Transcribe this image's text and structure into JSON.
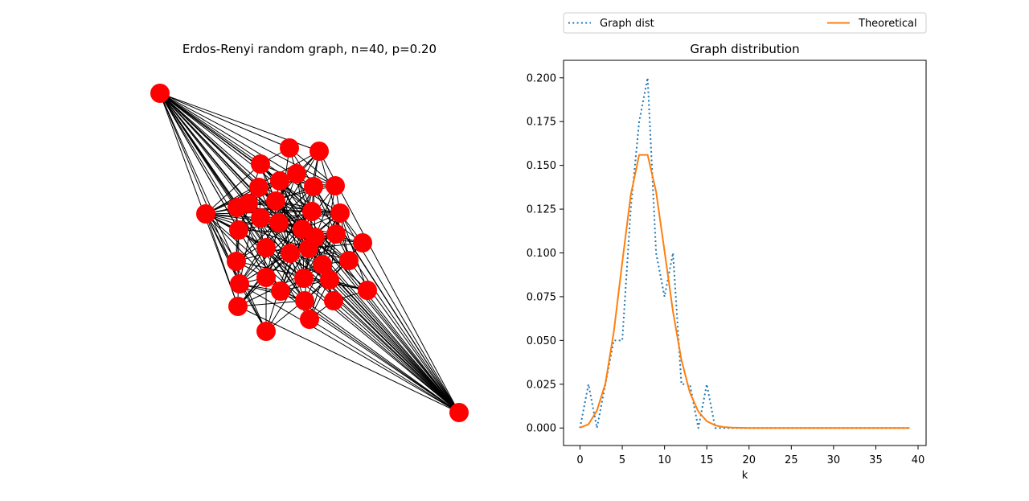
{
  "chart_data": [
    {
      "type": "network",
      "title": "Erdos-Renyi random graph, n=40, p=0.20",
      "node_color": "#ff0000",
      "edge_color": "#000000",
      "node_count": 40
    },
    {
      "type": "line",
      "title": "Graph distribution",
      "xlabel": "k",
      "ylabel": "",
      "xlim": [
        -1.95,
        40.95
      ],
      "ylim": [
        -0.01,
        0.21
      ],
      "xticks": [
        0,
        5,
        10,
        15,
        20,
        25,
        30,
        35,
        40
      ],
      "yticks": [
        0.0,
        0.025,
        0.05,
        0.075,
        0.1,
        0.125,
        0.15,
        0.175,
        0.2
      ],
      "ytick_labels": [
        "0.000",
        "0.025",
        "0.050",
        "0.075",
        "0.100",
        "0.125",
        "0.150",
        "0.175",
        "0.200"
      ],
      "grid": false,
      "legend_placement": "above",
      "x": [
        0,
        1,
        2,
        3,
        4,
        5,
        6,
        7,
        8,
        9,
        10,
        11,
        12,
        13,
        14,
        15,
        16,
        17,
        18,
        19,
        20,
        21,
        22,
        23,
        24,
        25,
        26,
        27,
        28,
        29,
        30,
        31,
        32,
        33,
        34,
        35,
        36,
        37,
        38,
        39
      ],
      "series": [
        {
          "name": "Graph dist",
          "style": "dotted",
          "color": "#1f77b4",
          "values": [
            0.0,
            0.025,
            0.0,
            0.025,
            0.05,
            0.05,
            0.125,
            0.175,
            0.2,
            0.1,
            0.075,
            0.1,
            0.025,
            0.025,
            0.0,
            0.025,
            0.0,
            0,
            0,
            0,
            0,
            0,
            0,
            0,
            0,
            0,
            0,
            0,
            0,
            0,
            0,
            0,
            0,
            0,
            0,
            0,
            0,
            0,
            0,
            0
          ]
        },
        {
          "name": "Theoretical",
          "style": "solid",
          "color": "#ff7f0e",
          "values": [
            0.0002,
            0.0021,
            0.0099,
            0.0254,
            0.055,
            0.0946,
            0.133,
            0.156,
            0.156,
            0.135,
            0.101,
            0.0665,
            0.0389,
            0.0202,
            0.0094,
            0.0039,
            0.0015,
            0.0005,
            0.0002,
            0.0001,
            0,
            0,
            0,
            0,
            0,
            0,
            0,
            0,
            0,
            0,
            0,
            0,
            0,
            0,
            0,
            0,
            0,
            0,
            0,
            0
          ]
        }
      ]
    }
  ]
}
